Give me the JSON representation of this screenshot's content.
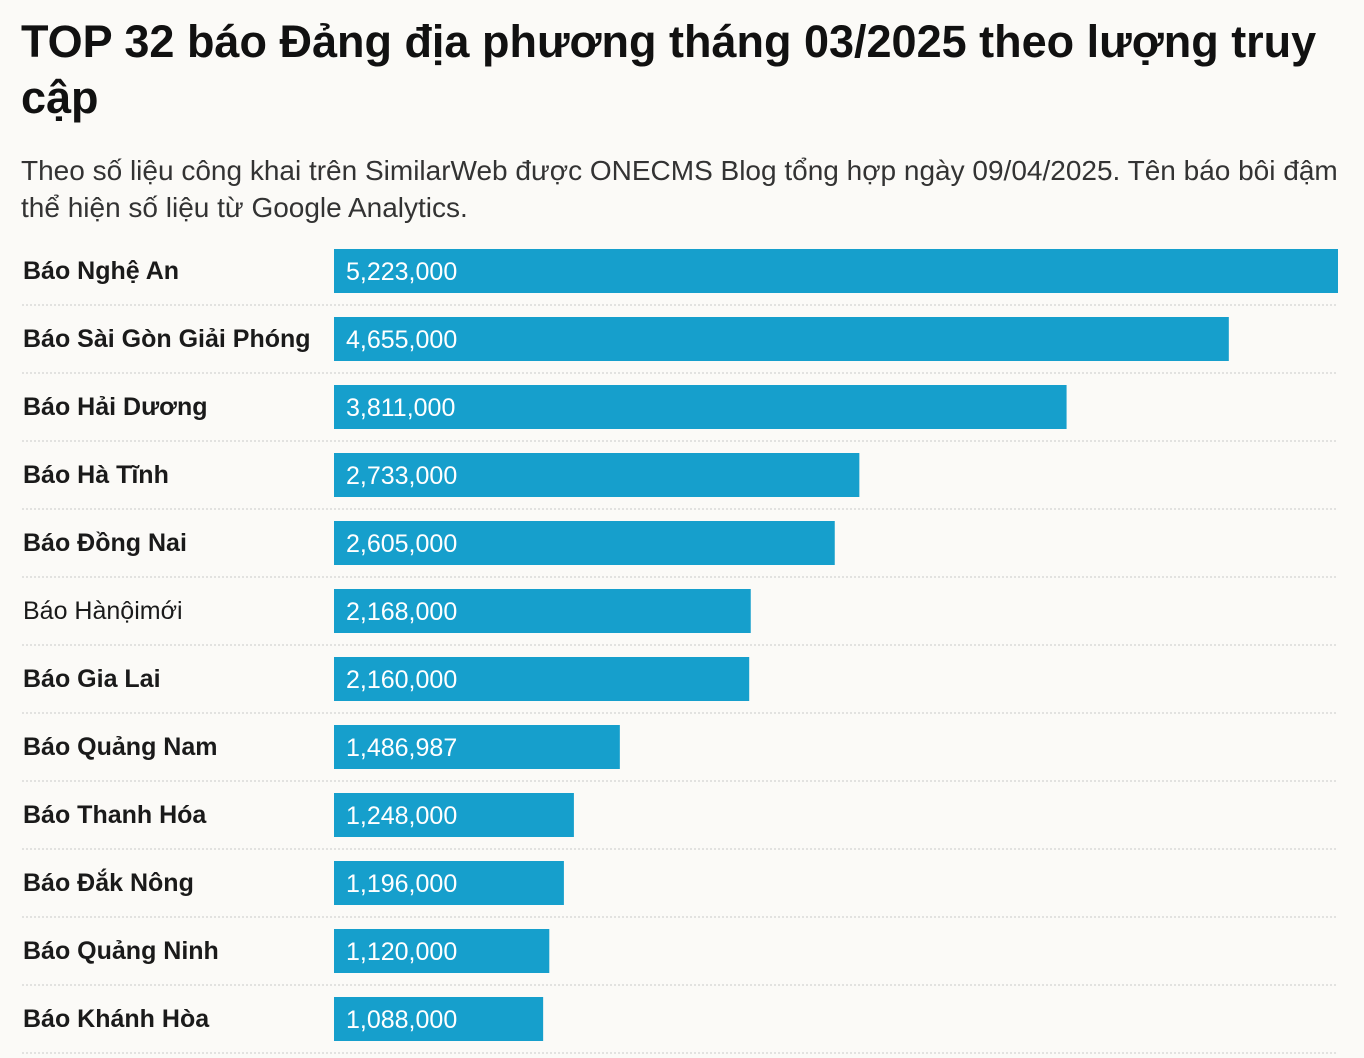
{
  "header": {
    "title": "TOP 32 báo Đảng địa phương tháng 03/2025 theo lượng truy cập",
    "subtitle": "Theo số liệu công khai trên SimilarWeb được ONECMS Blog tổng hợp ngày 09/04/2025. Tên báo bôi đậm thể hiện số liệu từ Google Analytics."
  },
  "colors": {
    "bar": "#169fcc",
    "divider": "#c9c9c9",
    "background": "#fbfaf7"
  },
  "chart_data": {
    "type": "bar",
    "orientation": "horizontal",
    "title": "TOP 32 báo Đảng địa phương tháng 03/2025 theo lượng truy cập",
    "xlim": [
      0,
      5223000
    ],
    "grid": false,
    "categories": [
      "Báo Nghệ An",
      "Báo Sài Gòn Giải Phóng",
      "Báo Hải Dương",
      "Báo Hà Tĩnh",
      "Báo Đồng Nai",
      "Báo Hànộimới",
      "Báo Gia Lai",
      "Báo Quảng Nam",
      "Báo Thanh Hóa",
      "Báo Đắk Nông",
      "Báo Quảng Ninh",
      "Báo Khánh Hòa"
    ],
    "values": [
      5223000,
      4655000,
      3811000,
      2733000,
      2605000,
      2168000,
      2160000,
      1486987,
      1248000,
      1196000,
      1120000,
      1088000
    ],
    "value_labels": [
      "5,223,000",
      "4,655,000",
      "3,811,000",
      "2,733,000",
      "2,605,000",
      "2,168,000",
      "2,160,000",
      "1,486,987",
      "1,248,000",
      "1,196,000",
      "1,120,000",
      "1,088,000"
    ],
    "bold": [
      true,
      true,
      true,
      true,
      true,
      false,
      true,
      true,
      true,
      true,
      true,
      true
    ]
  }
}
